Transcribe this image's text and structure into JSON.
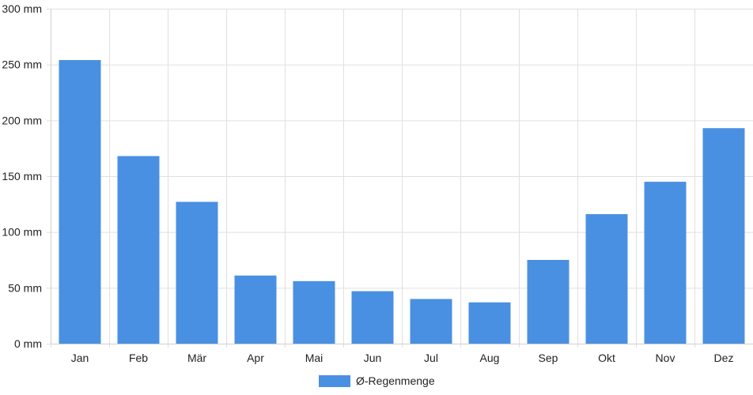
{
  "chart_data": {
    "type": "bar",
    "categories": [
      "Jan",
      "Feb",
      "Mär",
      "Apr",
      "Mai",
      "Jun",
      "Jul",
      "Aug",
      "Sep",
      "Okt",
      "Nov",
      "Dez"
    ],
    "series": [
      {
        "name": "Ø-Regenmenge",
        "color": "#4a90e2",
        "values": [
          254,
          168,
          127,
          61,
          56,
          47,
          40,
          37,
          75,
          116,
          145,
          193
        ]
      }
    ],
    "y_unit": "mm",
    "ylim": [
      0,
      300
    ],
    "yticks": [
      0,
      50,
      100,
      150,
      200,
      250,
      300
    ],
    "grid": true,
    "legend_position": "bottom"
  }
}
